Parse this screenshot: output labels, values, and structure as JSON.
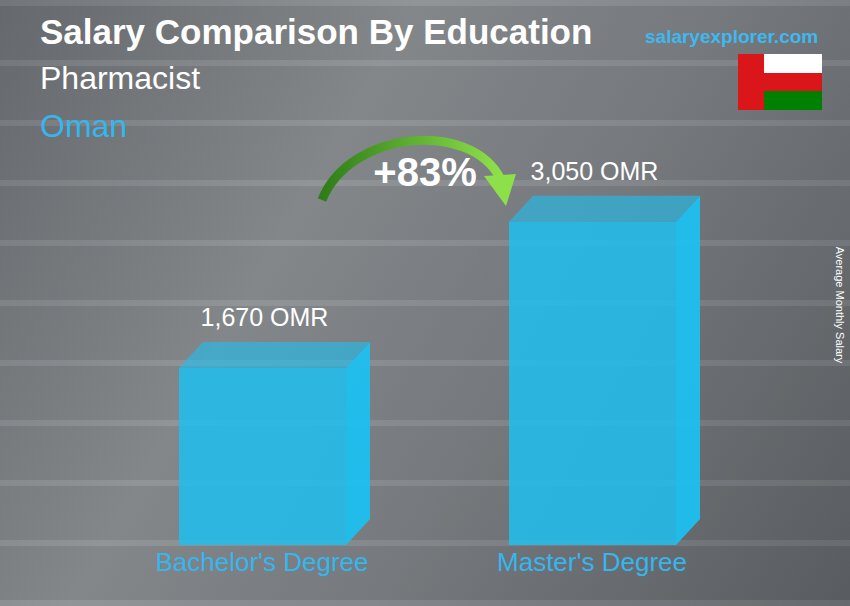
{
  "chart_data": {
    "type": "bar",
    "title": "Salary Comparison By Education",
    "subtitle": "Pharmacist",
    "location": "Oman",
    "source": "salaryexplorer.com",
    "annotation": "+83%",
    "y_label": "Average Monthly Salary",
    "categories": [
      "Bachelor's Degree",
      "Master's Degree"
    ],
    "values": [
      1670,
      3050
    ],
    "value_labels": [
      "1,670 OMR",
      "3,050 OMR"
    ],
    "color": "#1ec0f0",
    "ylim": [
      0,
      3500
    ],
    "grid": false,
    "data_labels": true,
    "tick_labels": "x"
  }
}
